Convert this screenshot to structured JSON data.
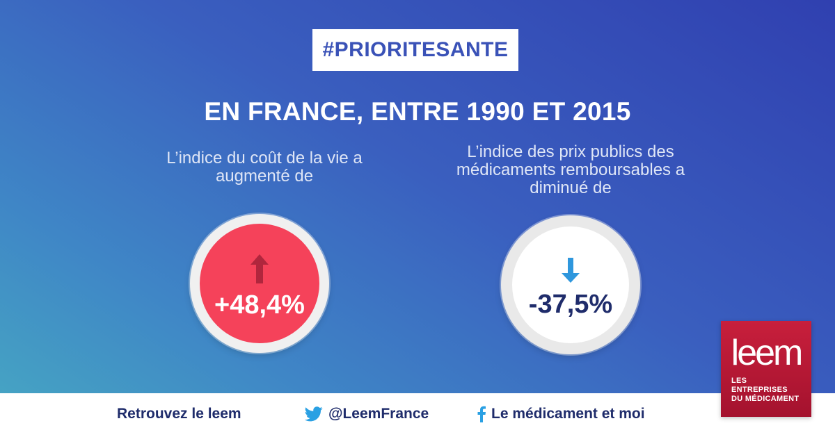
{
  "hashtag": "#PRIORITESANTE",
  "headline": "EN FRANCE, ENTRE 1990 ET 2015",
  "stats": {
    "left": {
      "description": "L’indice du coût de la vie a augmenté de",
      "value": "+48,4%",
      "direction": "up",
      "circle_color": "#f5425a",
      "arrow_color": "#b0263d"
    },
    "right": {
      "description": "L’indice des prix publics des médicaments remboursables a diminué de",
      "value": "-37,5%",
      "direction": "down",
      "circle_color": "#ffffff",
      "arrow_color": "#2f97dd"
    }
  },
  "footer": {
    "site_label": "Retrouvez le leem",
    "twitter_handle": "@LeemFrance",
    "twitter_icon": "twitter-icon",
    "facebook_label": "Le médicament et moi",
    "facebook_icon": "facebook-icon"
  },
  "logo": {
    "word": "leem",
    "tagline_line1": "LES ENTREPRISES",
    "tagline_line2": "DU MÉDICAMENT"
  },
  "colors": {
    "accent_blue": "#3a52b7",
    "navy": "#1f2c6b",
    "brand_red": "#c81f3c"
  }
}
